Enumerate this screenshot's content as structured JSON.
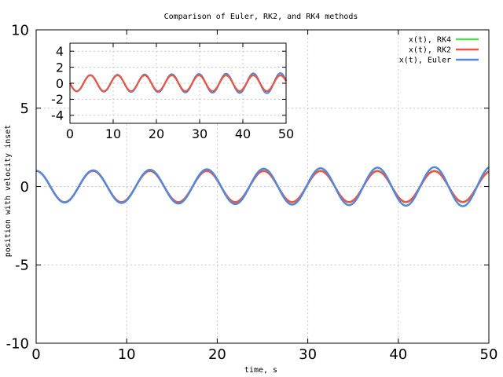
{
  "chart_data": [
    {
      "type": "line",
      "title": "Comparison of Euler, RK2, and RK4 methods",
      "xlabel": "time, s",
      "ylabel": "position with velocity inset",
      "xlim": [
        0,
        50
      ],
      "ylim": [
        -10,
        10
      ],
      "x_ticks": [
        0,
        10,
        20,
        30,
        40,
        50
      ],
      "y_ticks": [
        -10,
        -5,
        0,
        5,
        10
      ],
      "x_tick_labels": [
        "0",
        "10",
        "20",
        "30",
        "40",
        "50"
      ],
      "y_tick_labels": [
        "-10",
        "-5",
        "0",
        "5",
        "10"
      ],
      "grid": true,
      "legend_position": "top-right",
      "series": [
        {
          "name": "x(t), RK4",
          "color": "#55dd55",
          "function": "cos",
          "period": 6.2832,
          "amplitude_start": 1.0,
          "amplitude_end": 1.0
        },
        {
          "name": "x(t), RK2",
          "color": "#ee5544",
          "function": "cos",
          "period": 6.2832,
          "amplitude_start": 1.0,
          "amplitude_end": 0.98
        },
        {
          "name": "x(t), Euler",
          "color": "#5588dd",
          "function": "cos",
          "period": 6.2832,
          "amplitude_start": 1.0,
          "amplitude_end": 1.27
        }
      ]
    },
    {
      "type": "line",
      "title": "",
      "xlim": [
        0,
        50
      ],
      "ylim": [
        -5,
        5
      ],
      "x_ticks": [
        0,
        10,
        20,
        30,
        40,
        50
      ],
      "y_ticks": [
        -4,
        -2,
        0,
        2,
        4
      ],
      "x_tick_labels": [
        "0",
        "10",
        "20",
        "30",
        "40",
        "50"
      ],
      "y_tick_labels": [
        "-4",
        "-2",
        "0",
        "2",
        "4"
      ],
      "grid": true,
      "legend_position": "none",
      "series": [
        {
          "color": "#55dd55",
          "function": "-sin",
          "period": 6.2832,
          "amplitude_start": 1.0,
          "amplitude_end": 1.0
        },
        {
          "color": "#5588dd",
          "function": "-sin",
          "period": 6.2832,
          "amplitude_start": 1.0,
          "amplitude_end": 1.27
        },
        {
          "color": "#ee5544",
          "function": "-sin",
          "period": 6.2832,
          "amplitude_start": 1.0,
          "amplitude_end": 0.98
        }
      ]
    }
  ]
}
